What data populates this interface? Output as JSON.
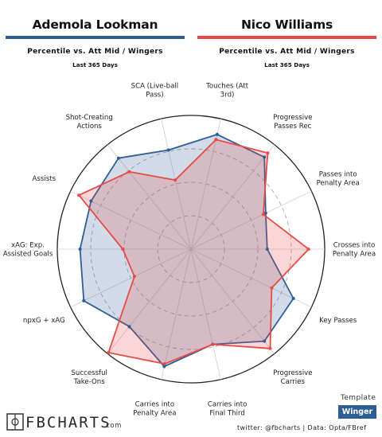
{
  "players": [
    {
      "name": "Ademola Lookman",
      "subtitle": "Percentile vs. Att Mid / Wingers",
      "period": "Last 365 Days",
      "color": "#2f5e96"
    },
    {
      "name": "Nico Williams",
      "subtitle": "Percentile vs. Att Mid / Wingers",
      "period": "Last 365 Days",
      "color": "#e84b43"
    }
  ],
  "footer": {
    "brand": "FBCHARTS",
    "brand_suffix": ".com",
    "template_label": "Template",
    "template_value": "Winger",
    "credits": "twitter: @fbcharts | Data: Opta/FBref"
  },
  "chart_data": {
    "type": "radar",
    "range": [
      0,
      100
    ],
    "grid": true,
    "axes": [
      {
        "label": [
          "Touches (Att",
          "3rd)"
        ]
      },
      {
        "label": [
          "Progressive",
          "Passes Rec"
        ]
      },
      {
        "label": [
          "Passes into",
          "Penalty Area"
        ]
      },
      {
        "label": [
          "Crosses into",
          "Penalty Area"
        ]
      },
      {
        "label": [
          "Key Passes"
        ]
      },
      {
        "label": [
          "Progressive",
          "Carries"
        ]
      },
      {
        "label": [
          "Carries into",
          "Final Third"
        ]
      },
      {
        "label": [
          "Carries into",
          "Penalty Area"
        ]
      },
      {
        "label": [
          "Successful",
          "Take-Ons"
        ]
      },
      {
        "label": [
          "npxG + xAG"
        ]
      },
      {
        "label": [
          "xAG: Exp.",
          "Assisted Goals"
        ]
      },
      {
        "label": [
          "Assists"
        ]
      },
      {
        "label": [
          "Shot-Creating",
          "Actions"
        ]
      },
      {
        "label": [
          "SCA (Live-ball",
          "Pass)"
        ]
      }
    ],
    "series": [
      {
        "name": "Ademola Lookman",
        "values": [
          88,
          88,
          62,
          57,
          85,
          88,
          73,
          90,
          74,
          89,
          83,
          83,
          87,
          76
        ]
      },
      {
        "name": "Nico Williams",
        "values": [
          84,
          92,
          60,
          88,
          67,
          95,
          73,
          88,
          99,
          47,
          51,
          93,
          74,
          53
        ]
      }
    ]
  }
}
